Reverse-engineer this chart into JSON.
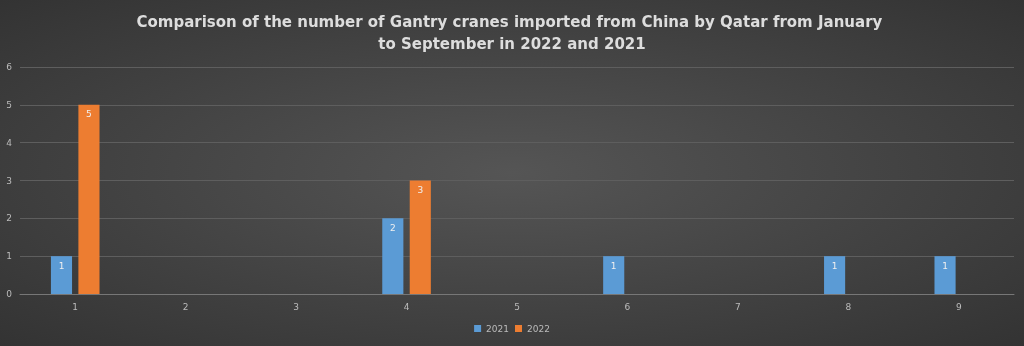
{
  "chart_data": {
    "type": "bar",
    "title": "Comparison of the number of Gantry cranes imported from China by Qatar from January to September in 2022 and 2021",
    "categories": [
      "1",
      "2",
      "3",
      "4",
      "5",
      "6",
      "7",
      "8",
      "9"
    ],
    "series": [
      {
        "name": "2021",
        "color": "#5b9bd5",
        "values": [
          1,
          0,
          0,
          2,
          0,
          1,
          0,
          1,
          1
        ],
        "value_labels": [
          "1",
          null,
          null,
          "2",
          null,
          "1",
          null,
          "1",
          "1"
        ]
      },
      {
        "name": "2022",
        "color": "#ed7d31",
        "values": [
          5,
          0,
          0,
          3,
          0,
          0,
          0,
          0,
          0
        ],
        "value_labels": [
          "5",
          null,
          null,
          "3",
          null,
          null,
          null,
          null,
          null
        ]
      }
    ],
    "ylim": [
      0,
      6
    ],
    "yticks": [
      0,
      1,
      2,
      3,
      4,
      5,
      6
    ],
    "grid": "y",
    "legend": "bottom"
  }
}
